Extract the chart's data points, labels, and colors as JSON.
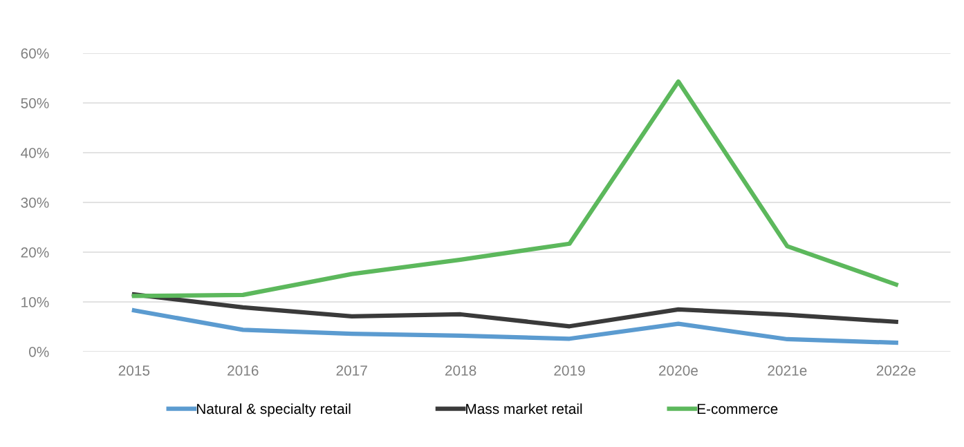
{
  "chart_data": {
    "type": "line",
    "categories": [
      "2015",
      "2016",
      "2017",
      "2018",
      "2019",
      "2020e",
      "2021e",
      "2022e"
    ],
    "series": [
      {
        "name": "Natural & specialty retail",
        "color": "#5b9bd0",
        "values": [
          8.3,
          4.4,
          3.6,
          3.2,
          2.6,
          5.6,
          2.5,
          1.8
        ]
      },
      {
        "name": "Mass market retail",
        "color": "#3a3a3a",
        "values": [
          11.5,
          8.9,
          7.1,
          7.5,
          5.1,
          8.5,
          7.4,
          6.0
        ]
      },
      {
        "name": "E-commerce",
        "color": "#5cb85c",
        "values": [
          11.2,
          11.4,
          15.6,
          18.5,
          21.7,
          54.3,
          21.2,
          13.5
        ]
      }
    ],
    "ylim": [
      0,
      60
    ],
    "yticks": [
      {
        "value": 0,
        "label": "0%"
      },
      {
        "value": 10,
        "label": "10%"
      },
      {
        "value": 20,
        "label": "20%"
      },
      {
        "value": 30,
        "label": "30%"
      },
      {
        "value": 40,
        "label": "40%"
      },
      {
        "value": 50,
        "label": "50%"
      },
      {
        "value": 60,
        "label": "60%"
      }
    ],
    "grid": "y",
    "legend": "bottom",
    "marker": "none",
    "line_style": "solid"
  }
}
